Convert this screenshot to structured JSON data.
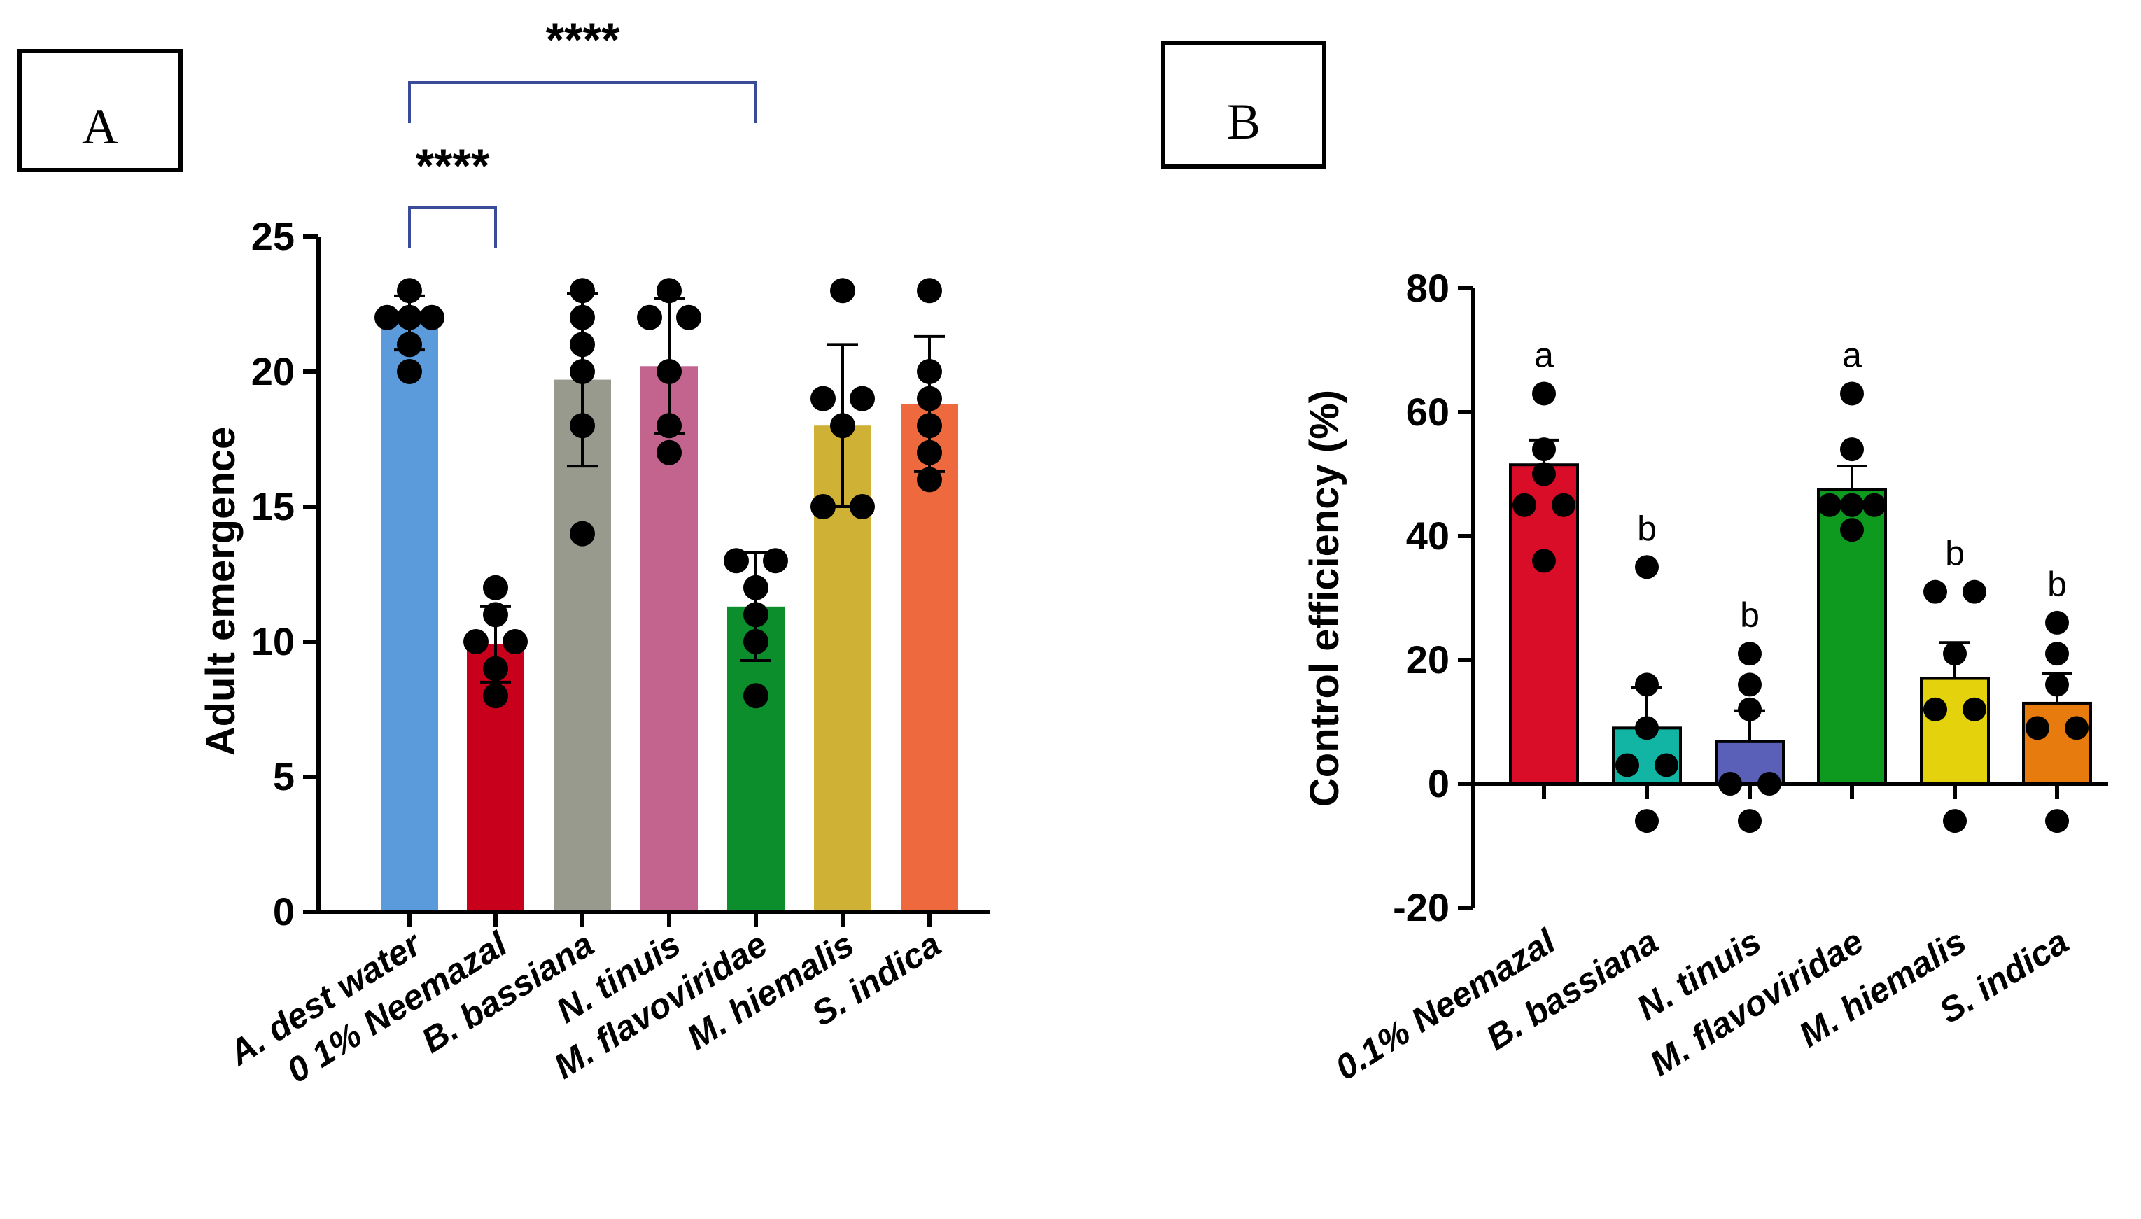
{
  "chart_data": [
    {
      "id": "A",
      "type": "bar",
      "panel_label": "A",
      "ylabel": "Adult emergence",
      "xlabel": "",
      "ylim": [
        0,
        25
      ],
      "yticks": [
        0,
        5,
        10,
        15,
        20,
        25
      ],
      "categories": [
        "A. dest  water",
        "0 1% Neemazal",
        "B. bassiana",
        "N. tinuis",
        "M. flavoviridae",
        "M. hiemalis",
        "S. indica"
      ],
      "values": [
        21.8,
        9.9,
        19.7,
        20.2,
        11.3,
        18.0,
        18.8
      ],
      "errors": [
        1.0,
        1.4,
        3.2,
        2.5,
        2.0,
        3.0,
        2.5
      ],
      "colors": [
        "#5b9bdb",
        "#c8001c",
        "#979a8c",
        "#c3648e",
        "#0b8e2b",
        "#cfb136",
        "#ee6a3e"
      ],
      "points": [
        [
          23,
          22,
          22,
          22,
          21,
          20
        ],
        [
          12,
          11,
          10,
          10,
          9,
          8
        ],
        [
          23,
          22,
          21,
          20,
          18,
          14
        ],
        [
          23,
          22,
          22,
          20,
          18,
          17
        ],
        [
          13,
          13,
          12,
          11,
          10,
          8
        ],
        [
          23,
          19,
          19,
          18,
          15,
          15
        ],
        [
          23,
          20,
          19,
          18,
          17,
          16
        ]
      ],
      "significance": [
        {
          "from": 0,
          "to": 1,
          "label": "****"
        },
        {
          "from": 0,
          "to": 4,
          "label": "****"
        }
      ]
    },
    {
      "id": "B",
      "type": "bar",
      "panel_label": "B",
      "ylabel": "Control efficiency (%)",
      "xlabel": "",
      "ylim": [
        -20,
        80
      ],
      "yticks": [
        -20,
        0,
        20,
        40,
        60,
        80
      ],
      "categories": [
        "0.1% Neemazal",
        "B. bassiana",
        "N. tinuis",
        "M. flavoviridae",
        "M. hiemalis",
        "S. indica"
      ],
      "values": [
        51.5,
        9.0,
        6.8,
        47.5,
        17.0,
        13.0
      ],
      "errors": [
        4.0,
        6.5,
        5.0,
        3.8,
        5.8,
        4.8
      ],
      "colors": [
        "#da0d28",
        "#12b5a4",
        "#5a60b8",
        "#0d9a1f",
        "#e3d20c",
        "#e87b0e"
      ],
      "points": [
        [
          63,
          54,
          50,
          45,
          45,
          36
        ],
        [
          35,
          16,
          9,
          3,
          3,
          -6
        ],
        [
          21,
          16,
          12,
          0,
          0,
          -6
        ],
        [
          63,
          54,
          45,
          45,
          45,
          41
        ],
        [
          31,
          31,
          21,
          12,
          12,
          -6
        ],
        [
          26,
          21,
          16,
          9,
          9,
          -6
        ]
      ],
      "group_letters": [
        "a",
        "b",
        "b",
        "a",
        "b",
        "b"
      ]
    }
  ]
}
